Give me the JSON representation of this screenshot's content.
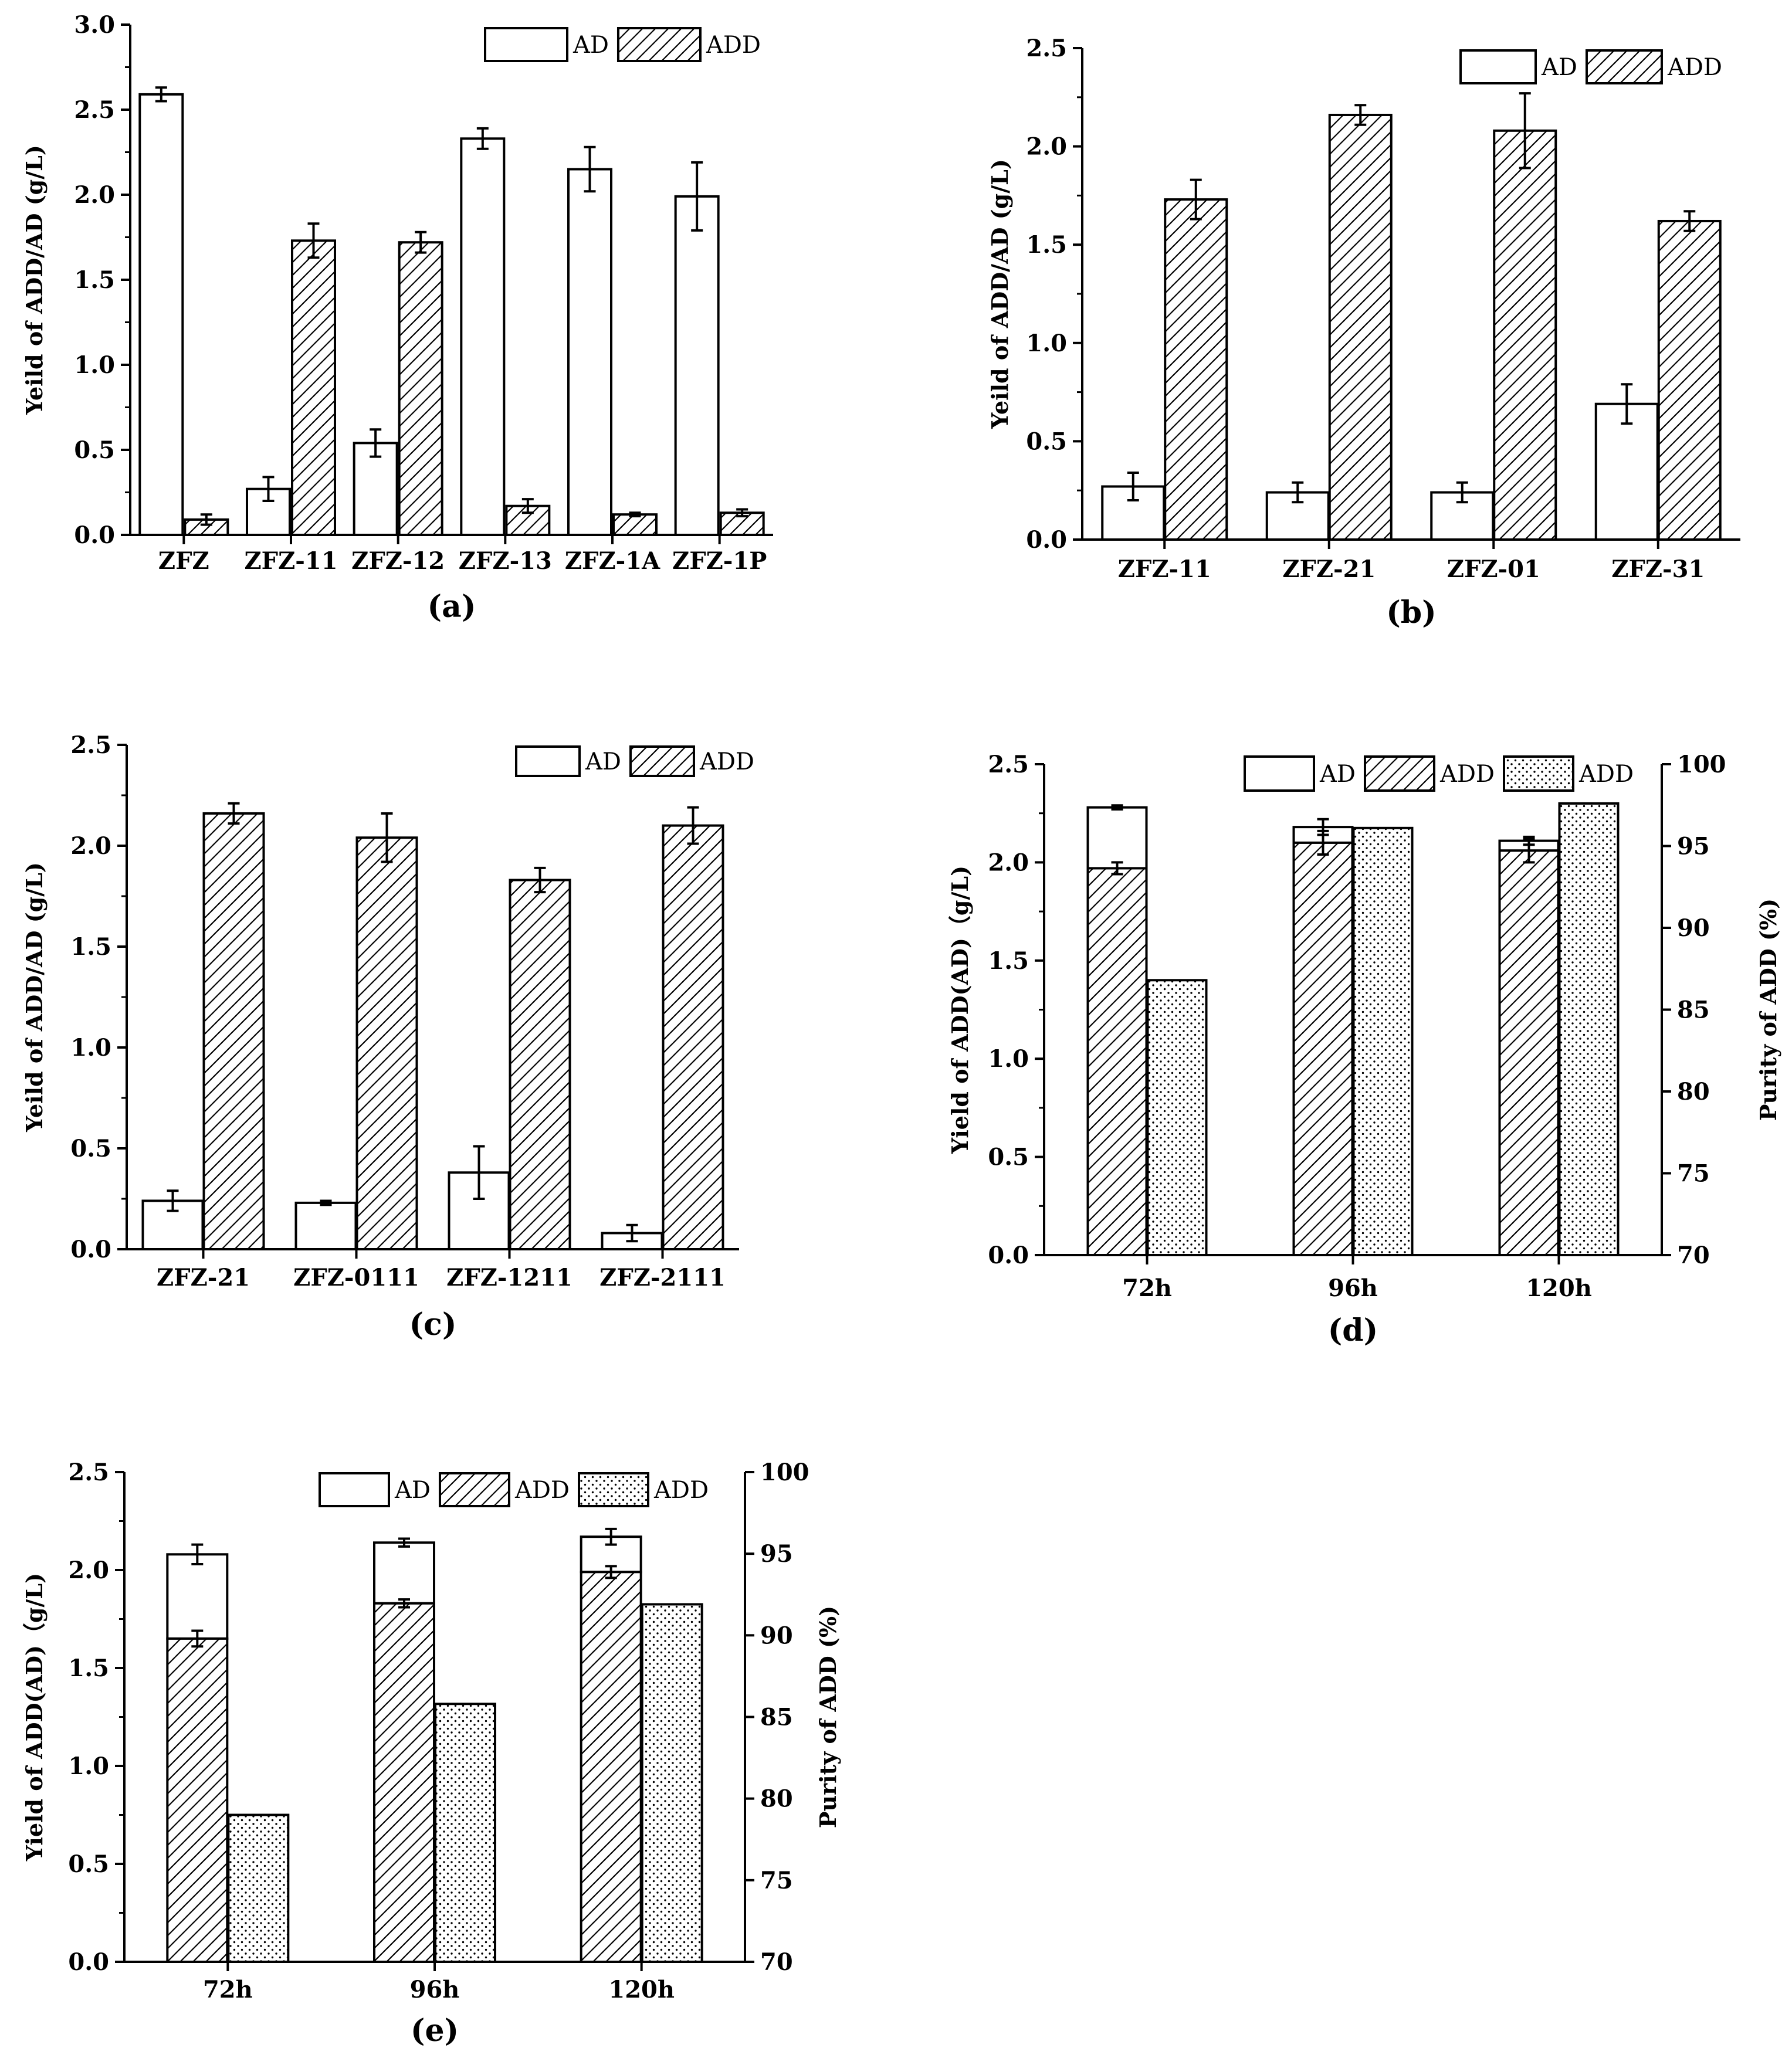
{
  "colors": {
    "stroke": "#000000",
    "background": "#ffffff"
  },
  "chart_data": [
    {
      "id": "a",
      "type": "bar",
      "panel_label": "(a)",
      "ylabel": "Yeild of ADD/AD (g/L)",
      "ylim": [
        0,
        3.0
      ],
      "yticks": [
        "0.0",
        "0.5",
        "1.0",
        "1.5",
        "2.0",
        "2.5",
        "3.0"
      ],
      "categories": [
        "ZFZ",
        "ZFZ-11",
        "ZFZ-12",
        "ZFZ-13",
        "ZFZ-1A",
        "ZFZ-1P"
      ],
      "legend": [
        "AD",
        "ADD"
      ],
      "series": [
        {
          "name": "AD",
          "pattern": "plain",
          "values": [
            2.59,
            0.27,
            0.54,
            2.33,
            2.15,
            1.99
          ],
          "errors": [
            0.04,
            0.07,
            0.08,
            0.06,
            0.13,
            0.2
          ]
        },
        {
          "name": "ADD",
          "pattern": "hatch",
          "values": [
            0.09,
            1.73,
            1.72,
            0.17,
            0.12,
            0.13
          ],
          "errors": [
            0.03,
            0.1,
            0.06,
            0.04,
            0.01,
            0.02
          ]
        }
      ]
    },
    {
      "id": "b",
      "type": "bar",
      "panel_label": "(b)",
      "ylabel": "Yeild of ADD/AD (g/L)",
      "ylim": [
        0,
        2.5
      ],
      "yticks": [
        "0.0",
        "0.5",
        "1.0",
        "1.5",
        "2.0",
        "2.5"
      ],
      "categories": [
        "ZFZ-11",
        "ZFZ-21",
        "ZFZ-01",
        "ZFZ-31"
      ],
      "legend": [
        "AD",
        "ADD"
      ],
      "series": [
        {
          "name": "AD",
          "pattern": "plain",
          "values": [
            0.27,
            0.24,
            0.24,
            0.69
          ],
          "errors": [
            0.07,
            0.05,
            0.05,
            0.1
          ]
        },
        {
          "name": "ADD",
          "pattern": "hatch",
          "values": [
            1.73,
            2.16,
            2.08,
            1.62
          ],
          "errors": [
            0.1,
            0.05,
            0.19,
            0.05
          ]
        }
      ]
    },
    {
      "id": "c",
      "type": "bar",
      "panel_label": "(c)",
      "ylabel": "Yeild of ADD/AD (g/L)",
      "ylim": [
        0,
        2.5
      ],
      "yticks": [
        "0.0",
        "0.5",
        "1.0",
        "1.5",
        "2.0",
        "2.5"
      ],
      "categories": [
        "ZFZ-21",
        "ZFZ-0111",
        "ZFZ-1211",
        "ZFZ-2111"
      ],
      "legend": [
        "AD",
        "ADD"
      ],
      "series": [
        {
          "name": "AD",
          "pattern": "plain",
          "values": [
            0.24,
            0.23,
            0.38,
            0.08
          ],
          "errors": [
            0.05,
            0.01,
            0.13,
            0.04
          ]
        },
        {
          "name": "ADD",
          "pattern": "hatch",
          "values": [
            2.16,
            2.04,
            1.83,
            2.1
          ],
          "errors": [
            0.05,
            0.12,
            0.06,
            0.09
          ]
        }
      ]
    },
    {
      "id": "d",
      "type": "bar",
      "panel_label": "(d)",
      "ylabel": "Yield of ADD(AD)（g/L)",
      "ylabel_right": "Purity of ADD (%)",
      "ylim": [
        0,
        2.5
      ],
      "yticks": [
        "0.0",
        "0.5",
        "1.0",
        "1.5",
        "2.0",
        "2.5"
      ],
      "ylim_right": [
        70,
        100
      ],
      "yticks_right": [
        "70",
        "75",
        "80",
        "85",
        "90",
        "95",
        "100"
      ],
      "categories": [
        "72h",
        "96h",
        "120h"
      ],
      "legend": [
        "AD",
        "ADD",
        "ADD"
      ],
      "stack": {
        "ADD": {
          "values": [
            1.97,
            2.1,
            2.06
          ],
          "errors": [
            0.03,
            0.06,
            0.06
          ]
        },
        "AD": {
          "values": [
            0.31,
            0.08,
            0.05
          ],
          "total_errors": [
            0.01,
            0.04,
            0.02
          ]
        }
      },
      "purity": {
        "name": "ADD",
        "values": [
          86.8,
          96.1,
          97.6
        ]
      }
    },
    {
      "id": "e",
      "type": "bar",
      "panel_label": "(e)",
      "ylabel": "Yield of ADD(AD)（g/L)",
      "ylabel_right": "Purity of ADD (%)",
      "ylim": [
        0,
        2.5
      ],
      "yticks": [
        "0.0",
        "0.5",
        "1.0",
        "1.5",
        "2.0",
        "2.5"
      ],
      "ylim_right": [
        70,
        100
      ],
      "yticks_right": [
        "70",
        "75",
        "80",
        "85",
        "90",
        "95",
        "100"
      ],
      "categories": [
        "72h",
        "96h",
        "120h"
      ],
      "legend": [
        "AD",
        "ADD",
        "ADD"
      ],
      "stack": {
        "ADD": {
          "values": [
            1.65,
            1.83,
            1.99
          ],
          "errors": [
            0.04,
            0.02,
            0.03
          ]
        },
        "AD": {
          "values": [
            0.43,
            0.31,
            0.18
          ],
          "total_errors": [
            0.05,
            0.02,
            0.04
          ]
        }
      },
      "purity": {
        "name": "ADD",
        "values": [
          79.0,
          85.8,
          91.9
        ]
      }
    }
  ]
}
